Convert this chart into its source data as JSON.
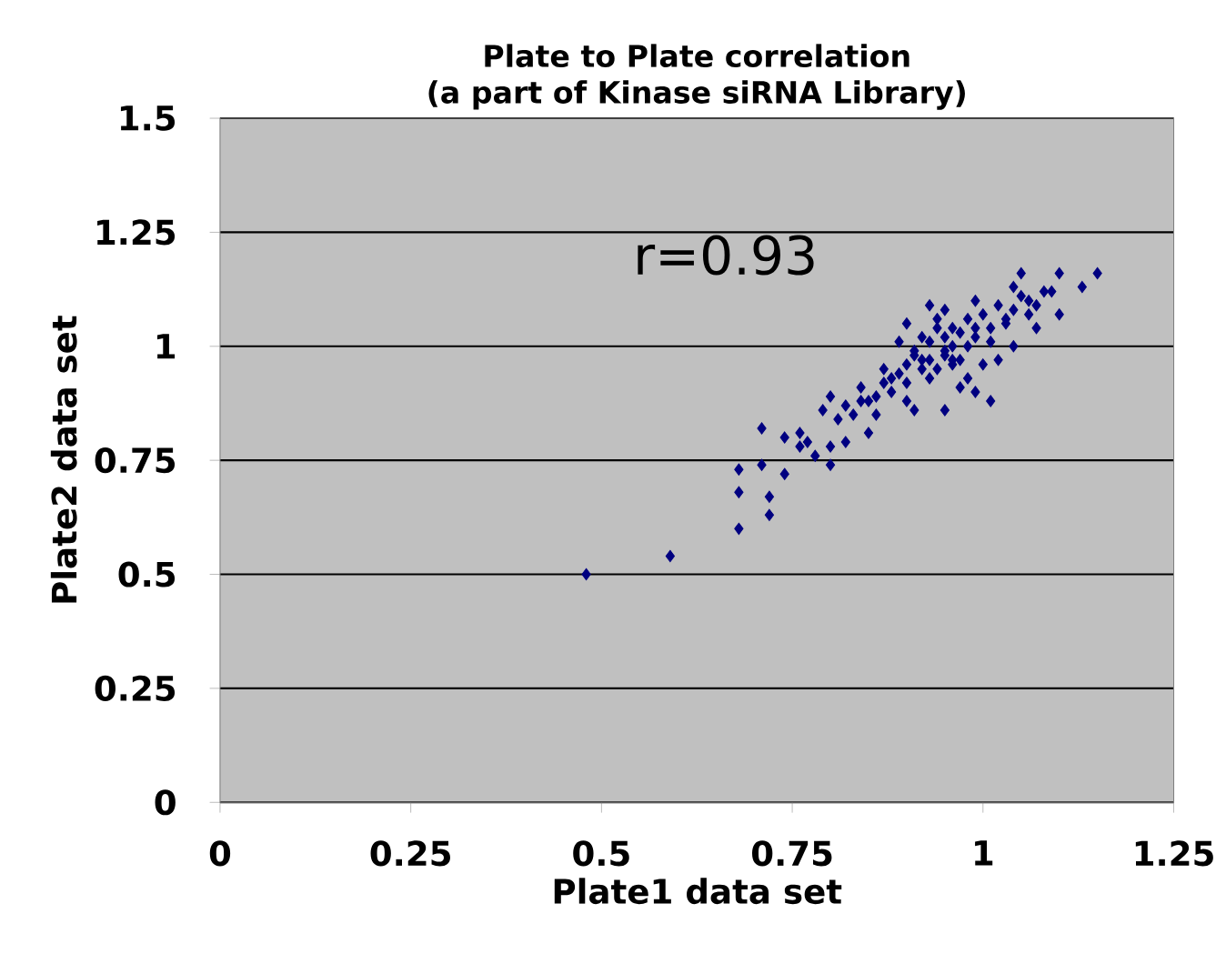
{
  "chart_data": {
    "type": "scatter",
    "title": "Plate to Plate correlation\n(a part of Kinase siRNA Library)",
    "xlabel": "Plate1 data set",
    "ylabel": "Plate2 data set",
    "annotations": [
      "r=0.93"
    ],
    "xlim": [
      0,
      1.25
    ],
    "ylim": [
      0,
      1.5
    ],
    "xticks": [
      0,
      0.25,
      0.5,
      0.75,
      1,
      1.25
    ],
    "yticks": [
      0,
      0.25,
      0.5,
      0.75,
      1,
      1.25,
      1.5
    ],
    "grid": "y",
    "marker": "diamond",
    "series": [
      {
        "color": "#000080",
        "x": [
          0.48,
          0.59,
          0.68,
          0.72,
          0.72,
          0.68,
          0.68,
          0.71,
          0.74,
          0.8,
          0.71,
          0.74,
          0.76,
          0.8,
          0.82,
          0.79,
          0.8,
          0.84,
          0.85,
          0.86,
          0.87,
          0.9,
          0.91,
          0.89,
          0.93,
          0.95,
          0.97,
          0.99,
          1.01,
          0.96,
          0.99,
          0.92,
          0.95,
          0.98,
          1.01,
          1.03,
          1.05,
          1.04,
          1.07,
          1.1,
          1.1,
          1.15,
          1.13,
          1.09,
          1.07,
          1.04,
          1.02,
          0.88,
          0.85,
          0.82,
          0.77,
          0.76,
          0.91,
          0.96,
          0.99,
          1.06,
          0.95,
          0.93,
          0.98,
          0.86,
          0.87,
          0.88,
          0.89,
          0.9,
          0.9,
          0.91,
          0.92,
          0.92,
          0.93,
          0.93,
          0.94,
          0.94,
          0.95,
          0.95,
          0.96,
          0.96,
          0.97,
          0.97,
          0.98,
          0.99,
          1.0,
          1.0,
          1.01,
          1.02,
          1.03,
          1.04,
          1.05,
          1.06,
          1.08,
          0.83,
          0.84,
          0.81,
          0.78,
          0.9,
          0.94
        ],
        "values": [
          0.5,
          0.54,
          0.6,
          0.63,
          0.67,
          0.68,
          0.73,
          0.74,
          0.72,
          0.74,
          0.82,
          0.8,
          0.81,
          0.78,
          0.79,
          0.86,
          0.89,
          0.91,
          0.81,
          0.85,
          0.95,
          0.88,
          0.86,
          1.01,
          1.09,
          0.86,
          0.91,
          0.9,
          0.88,
          1.04,
          1.1,
          0.97,
          0.99,
          1.0,
          1.01,
          1.06,
          1.16,
          1.13,
          1.04,
          1.16,
          1.07,
          1.16,
          1.13,
          1.12,
          1.09,
          1.0,
          0.97,
          0.93,
          0.88,
          0.87,
          0.79,
          0.78,
          0.98,
          0.97,
          1.04,
          1.1,
          1.08,
          0.93,
          0.93,
          0.89,
          0.92,
          0.9,
          0.94,
          0.96,
          0.92,
          0.99,
          0.95,
          1.02,
          0.97,
          1.01,
          0.95,
          1.04,
          0.98,
          1.02,
          0.96,
          1.0,
          1.03,
          0.97,
          1.06,
          1.02,
          0.96,
          1.07,
          1.04,
          1.09,
          1.05,
          1.08,
          1.11,
          1.07,
          1.12,
          0.85,
          0.88,
          0.84,
          0.76,
          1.05,
          1.06
        ]
      }
    ]
  }
}
